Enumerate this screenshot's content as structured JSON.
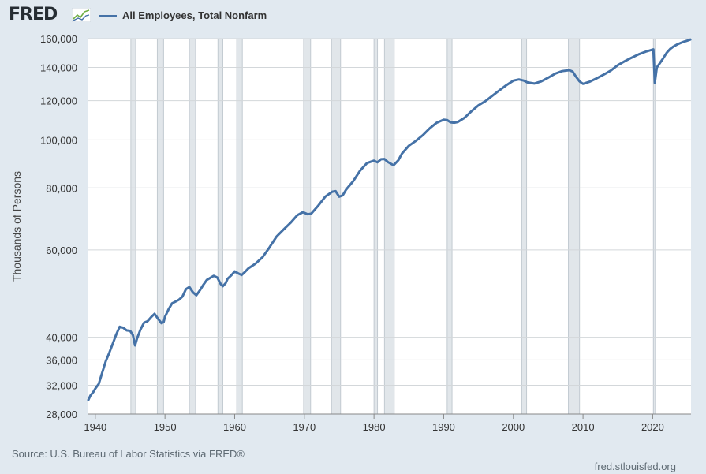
{
  "header": {
    "logo_text": "FRED",
    "legend_label": "All Employees, Total Nonfarm"
  },
  "footer": {
    "source": "Source: U.S. Bureau of Labor Statistics via FRED®",
    "url": "fred.stlouisfed.org"
  },
  "colors": {
    "series": "#4572a7",
    "background": "#e1e9f0",
    "plot": "#ffffff",
    "recession": "#e1e6ea"
  },
  "chart_data": {
    "type": "line",
    "title": "",
    "xlabel": "",
    "ylabel": "Thousands of Persons",
    "yscale": "log",
    "xlim": [
      1939,
      2025.5
    ],
    "ylim": [
      28000,
      160000
    ],
    "grid": true,
    "legend_position": "top-left",
    "y_ticks": [
      28000,
      32000,
      36000,
      40000,
      60000,
      80000,
      100000,
      120000,
      140000,
      160000
    ],
    "y_tick_labels": [
      "28,000",
      "32,000",
      "36,000",
      "40,000",
      "60,000",
      "80,000",
      "100,000",
      "120,000",
      "140,000",
      "160,000"
    ],
    "x_ticks": [
      1940,
      1950,
      1960,
      1970,
      1980,
      1990,
      2000,
      2010,
      2020
    ],
    "x_tick_labels": [
      "1940",
      "1950",
      "1960",
      "1970",
      "1980",
      "1990",
      "2000",
      "2010",
      "2020"
    ],
    "recessions": [
      [
        1945.1,
        1945.8
      ],
      [
        1948.9,
        1949.8
      ],
      [
        1953.5,
        1954.4
      ],
      [
        1957.6,
        1958.3
      ],
      [
        1960.3,
        1961.1
      ],
      [
        1969.9,
        1970.9
      ],
      [
        1973.9,
        1975.2
      ],
      [
        1980.0,
        1980.5
      ],
      [
        1981.5,
        1982.9
      ],
      [
        1990.5,
        1991.2
      ],
      [
        2001.2,
        2001.9
      ],
      [
        2007.9,
        2009.5
      ],
      [
        2020.1,
        2020.4
      ]
    ],
    "series": [
      {
        "name": "All Employees, Total Nonfarm",
        "color": "#4572a7",
        "points": [
          [
            1939.0,
            29900
          ],
          [
            1939.3,
            30500
          ],
          [
            1939.7,
            31000
          ],
          [
            1940.0,
            31500
          ],
          [
            1940.5,
            32200
          ],
          [
            1941.0,
            34000
          ],
          [
            1941.5,
            35800
          ],
          [
            1942.0,
            37200
          ],
          [
            1942.5,
            38800
          ],
          [
            1943.0,
            40500
          ],
          [
            1943.5,
            42000
          ],
          [
            1944.0,
            41800
          ],
          [
            1944.5,
            41300
          ],
          [
            1945.0,
            41200
          ],
          [
            1945.4,
            40400
          ],
          [
            1945.7,
            38500
          ],
          [
            1946.0,
            39800
          ],
          [
            1946.5,
            41500
          ],
          [
            1947.0,
            42800
          ],
          [
            1947.5,
            43100
          ],
          [
            1948.0,
            43900
          ],
          [
            1948.5,
            44600
          ],
          [
            1949.0,
            43600
          ],
          [
            1949.5,
            42700
          ],
          [
            1949.8,
            42900
          ],
          [
            1950.0,
            44000
          ],
          [
            1950.5,
            45500
          ],
          [
            1951.0,
            46800
          ],
          [
            1951.5,
            47200
          ],
          [
            1952.0,
            47600
          ],
          [
            1952.5,
            48300
          ],
          [
            1953.0,
            50000
          ],
          [
            1953.5,
            50500
          ],
          [
            1954.0,
            49300
          ],
          [
            1954.5,
            48600
          ],
          [
            1955.0,
            49700
          ],
          [
            1955.5,
            51000
          ],
          [
            1956.0,
            52200
          ],
          [
            1956.5,
            52700
          ],
          [
            1957.0,
            53200
          ],
          [
            1957.5,
            52800
          ],
          [
            1958.0,
            51200
          ],
          [
            1958.3,
            50700
          ],
          [
            1958.7,
            51400
          ],
          [
            1959.0,
            52500
          ],
          [
            1959.5,
            53300
          ],
          [
            1960.0,
            54300
          ],
          [
            1960.5,
            53800
          ],
          [
            1961.0,
            53400
          ],
          [
            1961.5,
            54200
          ],
          [
            1962.0,
            55100
          ],
          [
            1963.0,
            56300
          ],
          [
            1964.0,
            58000
          ],
          [
            1965.0,
            60700
          ],
          [
            1966.0,
            63800
          ],
          [
            1967.0,
            65900
          ],
          [
            1968.0,
            68000
          ],
          [
            1969.0,
            70500
          ],
          [
            1969.8,
            71500
          ],
          [
            1970.5,
            70800
          ],
          [
            1971.0,
            71000
          ],
          [
            1972.0,
            73700
          ],
          [
            1973.0,
            76800
          ],
          [
            1974.0,
            78600
          ],
          [
            1974.5,
            78800
          ],
          [
            1975.0,
            76800
          ],
          [
            1975.5,
            77300
          ],
          [
            1976.0,
            79400
          ],
          [
            1977.0,
            82500
          ],
          [
            1978.0,
            86700
          ],
          [
            1979.0,
            89800
          ],
          [
            1980.0,
            90800
          ],
          [
            1980.5,
            90100
          ],
          [
            1981.0,
            91400
          ],
          [
            1981.5,
            91500
          ],
          [
            1982.0,
            90200
          ],
          [
            1982.8,
            88900
          ],
          [
            1983.5,
            91000
          ],
          [
            1984.0,
            93800
          ],
          [
            1985.0,
            97300
          ],
          [
            1986.0,
            99500
          ],
          [
            1987.0,
            102200
          ],
          [
            1988.0,
            105500
          ],
          [
            1989.0,
            108300
          ],
          [
            1990.0,
            109800
          ],
          [
            1990.5,
            109600
          ],
          [
            1991.0,
            108500
          ],
          [
            1991.5,
            108300
          ],
          [
            1992.0,
            108600
          ],
          [
            1993.0,
            110800
          ],
          [
            1994.0,
            114300
          ],
          [
            1995.0,
            117400
          ],
          [
            1996.0,
            119700
          ],
          [
            1997.0,
            122800
          ],
          [
            1998.0,
            125900
          ],
          [
            1999.0,
            128900
          ],
          [
            2000.0,
            131700
          ],
          [
            2000.8,
            132400
          ],
          [
            2001.5,
            131700
          ],
          [
            2002.0,
            130600
          ],
          [
            2003.0,
            129900
          ],
          [
            2004.0,
            131200
          ],
          [
            2005.0,
            133500
          ],
          [
            2006.0,
            136000
          ],
          [
            2007.0,
            137600
          ],
          [
            2008.0,
            138200
          ],
          [
            2008.5,
            137400
          ],
          [
            2009.0,
            134000
          ],
          [
            2009.5,
            131200
          ],
          [
            2010.0,
            129700
          ],
          [
            2011.0,
            131100
          ],
          [
            2012.0,
            133200
          ],
          [
            2013.0,
            135500
          ],
          [
            2014.0,
            138000
          ],
          [
            2015.0,
            141500
          ],
          [
            2016.0,
            144100
          ],
          [
            2017.0,
            146500
          ],
          [
            2018.0,
            148800
          ],
          [
            2019.0,
            150600
          ],
          [
            2020.1,
            152200
          ],
          [
            2020.3,
            130300
          ],
          [
            2020.6,
            140000
          ],
          [
            2021.0,
            142600
          ],
          [
            2021.5,
            146000
          ],
          [
            2022.0,
            149800
          ],
          [
            2022.5,
            152500
          ],
          [
            2023.0,
            154300
          ],
          [
            2023.5,
            155700
          ],
          [
            2024.0,
            156800
          ],
          [
            2024.5,
            157800
          ],
          [
            2025.0,
            158600
          ],
          [
            2025.4,
            159300
          ]
        ]
      }
    ]
  }
}
